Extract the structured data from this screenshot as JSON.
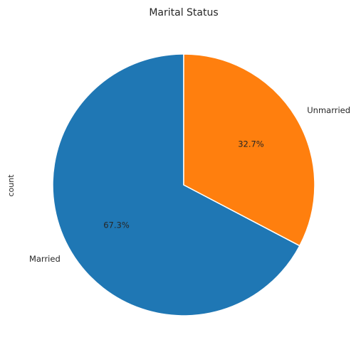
{
  "chart_data": {
    "type": "pie",
    "title": "Marital Status",
    "ylabel": "count",
    "xlabel": "",
    "categories": [
      "Married",
      "Unmarried"
    ],
    "values": [
      67.3,
      32.7
    ],
    "value_labels": [
      "67.3%",
      "32.7%"
    ],
    "colors": [
      "#1f77b4",
      "#ff7f0e"
    ],
    "start_angle_deg": 90,
    "direction": "counterclockwise",
    "grid": false,
    "legend": "none"
  }
}
